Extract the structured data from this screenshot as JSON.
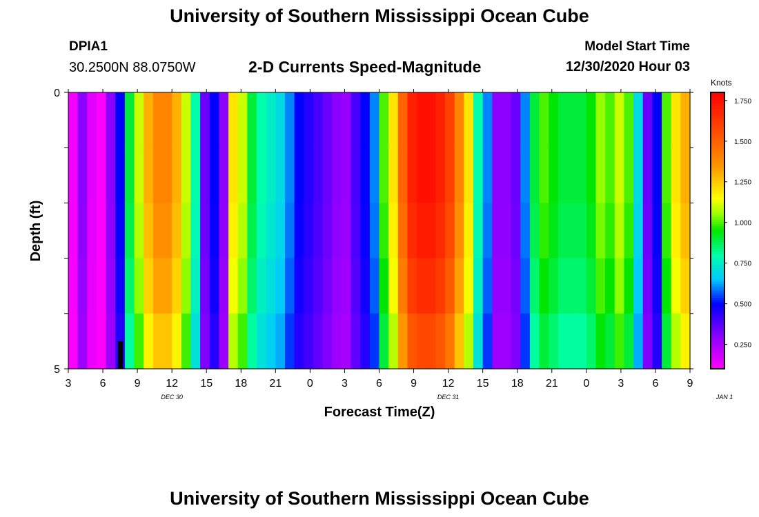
{
  "header": {
    "title": "University of Southern Mississippi Ocean Cube",
    "station_id": "DPIA1",
    "station_coords": "30.2500N 88.0750W",
    "chart_title": "2-D Currents Speed-Magnitude",
    "start_label": "Model Start Time",
    "start_value": "12/30/2020 Hour 03"
  },
  "footer": {
    "title": "University of Southern Mississippi Ocean Cube"
  },
  "colors": {
    "text": "#000000",
    "background": "#ffffff"
  },
  "chart_data": {
    "type": "heatmap",
    "title": "2-D Currents Speed-Magnitude",
    "xlabel": "Forecast Time(Z)",
    "ylabel": "Depth (ft)",
    "ylim": [
      5,
      0
    ],
    "y_tick_labels": [
      "0",
      "5"
    ],
    "x_start_hour": 3,
    "x_step_hours": 3,
    "x_tick_labels": [
      "3",
      "6",
      "9",
      "12",
      "15",
      "18",
      "21",
      "0",
      "3",
      "6",
      "9",
      "12",
      "15",
      "18",
      "21",
      "0",
      "3",
      "6",
      "9"
    ],
    "date_labels": [
      "DEC 30",
      "DEC 31",
      "JAN 1"
    ],
    "colorbar": {
      "unit": "Knots",
      "min": 0.1,
      "max": 1.8,
      "ticks": [
        "0.250",
        "0.500",
        "0.750",
        "1.000",
        "1.250",
        "1.500",
        "1.750"
      ],
      "tick_values": [
        0.25,
        0.5,
        0.75,
        1.0,
        1.25,
        1.5,
        1.75
      ]
    },
    "depth_layers": 5,
    "speed_by_hour": [
      0.12,
      0.3,
      0.15,
      0.1,
      0.3,
      0.5,
      0.9,
      1.1,
      1.3,
      1.4,
      1.4,
      1.3,
      1.1,
      0.8,
      0.35,
      0.5,
      0.3,
      1.2,
      1.1,
      0.9,
      0.8,
      0.75,
      0.7,
      0.6,
      0.5,
      0.45,
      0.4,
      0.35,
      0.3,
      0.28,
      0.4,
      0.5,
      0.6,
      1.0,
      1.2,
      1.5,
      1.7,
      1.75,
      1.75,
      1.7,
      1.6,
      1.4,
      1.2,
      0.8,
      0.6,
      0.3,
      0.3,
      0.35,
      0.6,
      0.9,
      1.0,
      0.95,
      0.9,
      0.9,
      0.9,
      0.95,
      1.05,
      1.0,
      1.1,
      1.0,
      0.7,
      0.35,
      0.5,
      1.0,
      1.2,
      1.3
    ],
    "depth_factor": [
      1.0,
      1.0,
      0.98,
      0.95,
      0.9
    ],
    "marker": {
      "hour": 4.5,
      "depth_from": 4.5,
      "depth_to": 5.0
    }
  }
}
